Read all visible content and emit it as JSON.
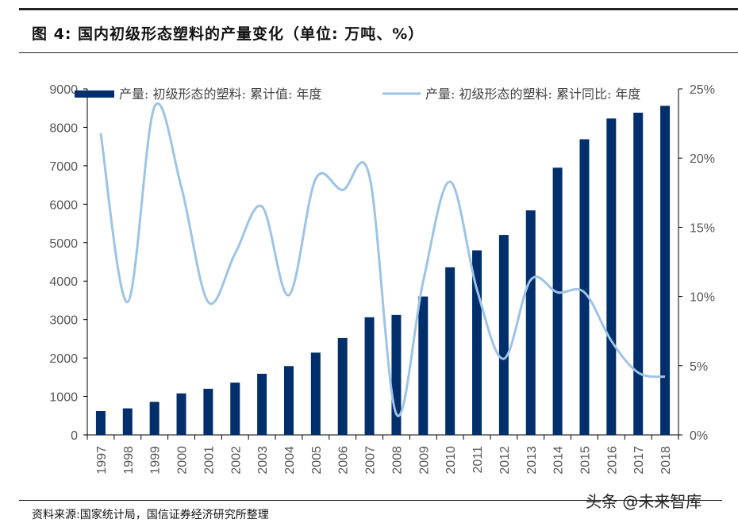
{
  "title": "图 4:  国内初级形态塑料的产量变化（单位:  万吨、%）",
  "source": "资料来源:国家统计局，国信证券经济研究所整理",
  "watermark": "头条 @未来智库",
  "chart_data": {
    "type": "bar+line",
    "categories": [
      "1997",
      "1998",
      "1999",
      "2000",
      "2001",
      "2002",
      "2003",
      "2004",
      "2005",
      "2006",
      "2007",
      "2008",
      "2009",
      "2010",
      "2011",
      "2012",
      "2013",
      "2014",
      "2015",
      "2016",
      "2017",
      "2018"
    ],
    "series": [
      {
        "name": "产量: 初级形态的塑料: 累计值: 年度",
        "type": "bar",
        "axis": "left",
        "color": "#002f6c",
        "values": [
          620,
          690,
          860,
          1080,
          1200,
          1360,
          1590,
          1790,
          2140,
          2520,
          3060,
          3120,
          3600,
          4360,
          4800,
          5200,
          5840,
          6950,
          7690,
          8230,
          8380,
          8560
        ]
      },
      {
        "name": "产量: 初级形态的塑料: 累计同比: 年度",
        "type": "line",
        "axis": "right",
        "color": "#9dc3e6",
        "values": [
          21.8,
          9.6,
          23.7,
          17.9,
          9.6,
          13.1,
          16.5,
          10.1,
          18.5,
          17.7,
          18.7,
          1.5,
          11.1,
          18.3,
          10.5,
          5.5,
          11.2,
          10.3,
          10.3,
          6.8,
          4.5,
          4.2
        ]
      }
    ],
    "yleft": {
      "ylim": [
        0,
        9000
      ],
      "ticks": [
        "0",
        "1000",
        "2000",
        "3000",
        "4000",
        "5000",
        "6000",
        "7000",
        "8000",
        "9000"
      ]
    },
    "yright": {
      "ylim": [
        0,
        25
      ],
      "ticks": [
        "0%",
        "5%",
        "10%",
        "15%",
        "20%",
        "25%"
      ]
    },
    "legend": "top",
    "grid": false
  }
}
